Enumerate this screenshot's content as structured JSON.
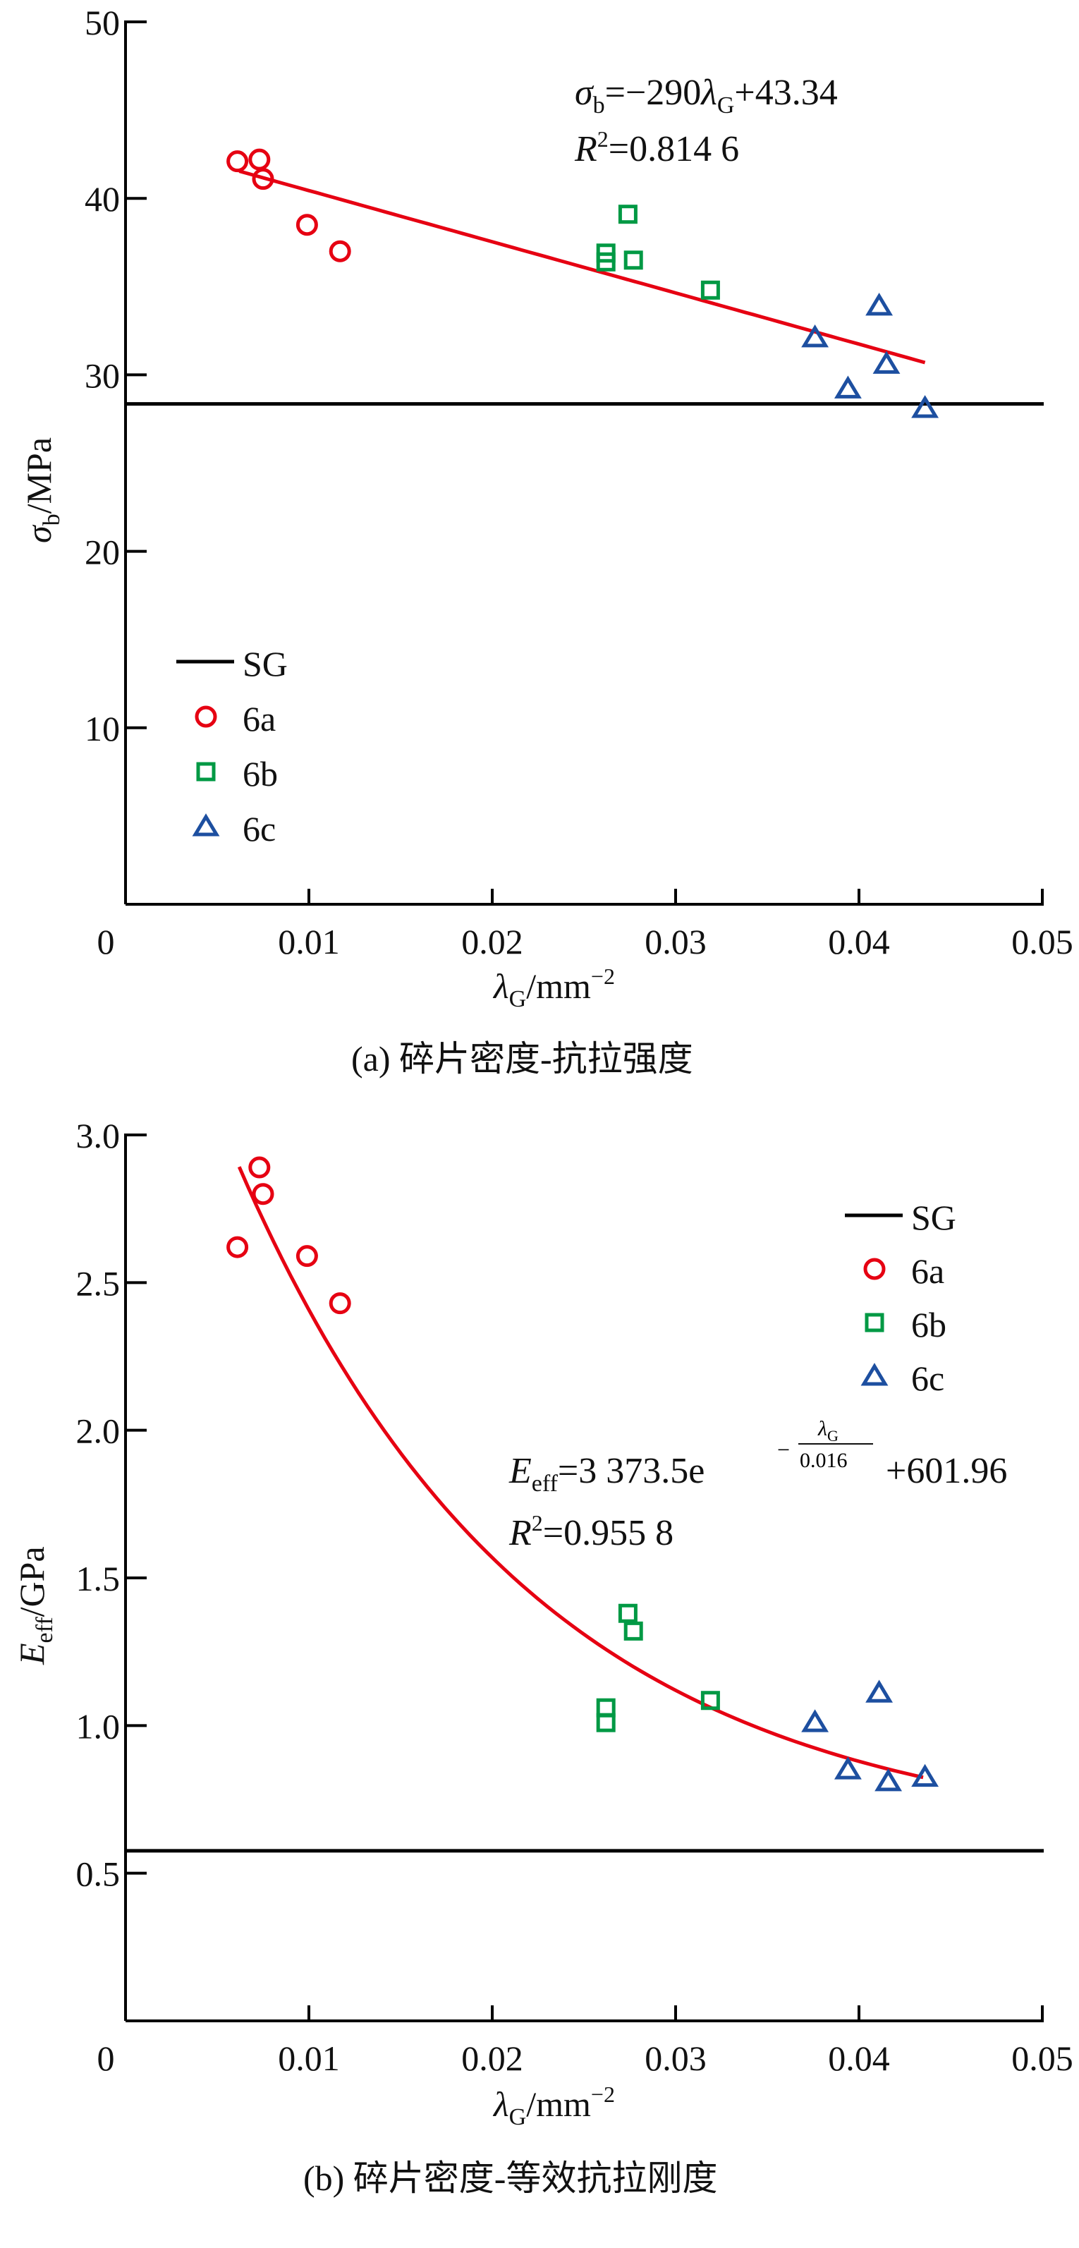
{
  "colors": {
    "fit": "#e60012",
    "6a": "#e60012",
    "6b": "#009944",
    "6c": "#1d4fa0",
    "SG": "#000000"
  },
  "chart_data": [
    {
      "type": "scatter",
      "caption": "(a)  碎片密度-抗拉强度",
      "xlabel": {
        "sym": "λ",
        "sub": "G",
        "unit": "/mm",
        "sup": "−2"
      },
      "ylabel": {
        "sym": "σ",
        "sub": "b",
        "unit": "/MPa"
      },
      "xlim": [
        0,
        0.05
      ],
      "ylim": [
        0,
        50
      ],
      "xticks": [
        "0",
        "0.01",
        "0.02",
        "0.03",
        "0.04",
        "0.05"
      ],
      "yticks": [
        "10",
        "20",
        "30",
        "40",
        "50"
      ],
      "legend_position": "bottom-left",
      "legend": [
        "SG",
        "6a",
        "6b",
        "6c"
      ],
      "sg_value": 28.35,
      "series": [
        {
          "name": "6a",
          "marker": "circle",
          "x": [
            0.0061,
            0.0073,
            0.0075,
            0.0099,
            0.0117
          ],
          "y": [
            42.1,
            42.2,
            41.1,
            38.5,
            37.0
          ]
        },
        {
          "name": "6b",
          "marker": "square",
          "x": [
            0.0274,
            0.0262,
            0.0262,
            0.0277,
            0.0319
          ],
          "y": [
            39.1,
            36.9,
            36.4,
            36.5,
            34.8
          ]
        },
        {
          "name": "6c",
          "marker": "triangle",
          "x": [
            0.0376,
            0.0411,
            0.0394,
            0.0415,
            0.0436
          ],
          "y": [
            32.1,
            33.9,
            29.2,
            30.6,
            28.1
          ]
        }
      ],
      "fit": {
        "model": "linear",
        "slope": -290,
        "intercept": 43.34,
        "xrange": [
          0.0062,
          0.0436
        ]
      },
      "equation": {
        "lhs": "σ",
        "lhs_sub": "b",
        "rhs1": "=−290",
        "var": "λ",
        "var_sub": "G",
        "rhs2": "+43.34",
        "r2_label": "R",
        "r2_sup": "2",
        "r2_value": "=0.814 6"
      }
    },
    {
      "type": "scatter",
      "caption": "(b)  碎片密度-等效抗拉刚度",
      "xlabel": {
        "sym": "λ",
        "sub": "G",
        "unit": "/mm",
        "sup": "−2"
      },
      "ylabel": {
        "sym": "E",
        "sub": "eff",
        "unit": "/GPa"
      },
      "xlim": [
        0,
        0.05
      ],
      "ylim": [
        0,
        3.0
      ],
      "xticks": [
        "0",
        "0.01",
        "0.02",
        "0.03",
        "0.04",
        "0.05"
      ],
      "yticks": [
        "0.5",
        "1.0",
        "1.5",
        "2.0",
        "2.5",
        "3.0"
      ],
      "legend_position": "top-right",
      "legend": [
        "SG",
        "6a",
        "6b",
        "6c"
      ],
      "sg_value": 0.576,
      "series": [
        {
          "name": "6a",
          "marker": "circle",
          "x": [
            0.0061,
            0.0073,
            0.0075,
            0.0099,
            0.0117
          ],
          "y": [
            2.62,
            2.89,
            2.8,
            2.59,
            2.43
          ]
        },
        {
          "name": "6b",
          "marker": "square",
          "x": [
            0.0274,
            0.0277,
            0.0262,
            0.0262,
            0.0319
          ],
          "y": [
            1.38,
            1.32,
            1.06,
            1.01,
            1.085
          ]
        },
        {
          "name": "6c",
          "marker": "triangle",
          "x": [
            0.0376,
            0.0411,
            0.0394,
            0.0416,
            0.0436
          ],
          "y": [
            1.01,
            1.11,
            0.85,
            0.81,
            0.825
          ]
        }
      ],
      "fit": {
        "model": "exponential",
        "a": 3373.5,
        "t": 0.016,
        "c": 601.96,
        "unit_divisor": 1000,
        "xrange": [
          0.0062,
          0.0435
        ]
      },
      "equation": {
        "lhs": "E",
        "lhs_sub": "eff",
        "rhs1": "=3 373.5e",
        "exp_minus": "−",
        "exp_num": "λ",
        "exp_num_sub": "G",
        "exp_den": "0.016",
        "rhs2": "+601.96",
        "r2_label": "R",
        "r2_sup": "2",
        "r2_value": "=0.955 8"
      }
    }
  ]
}
